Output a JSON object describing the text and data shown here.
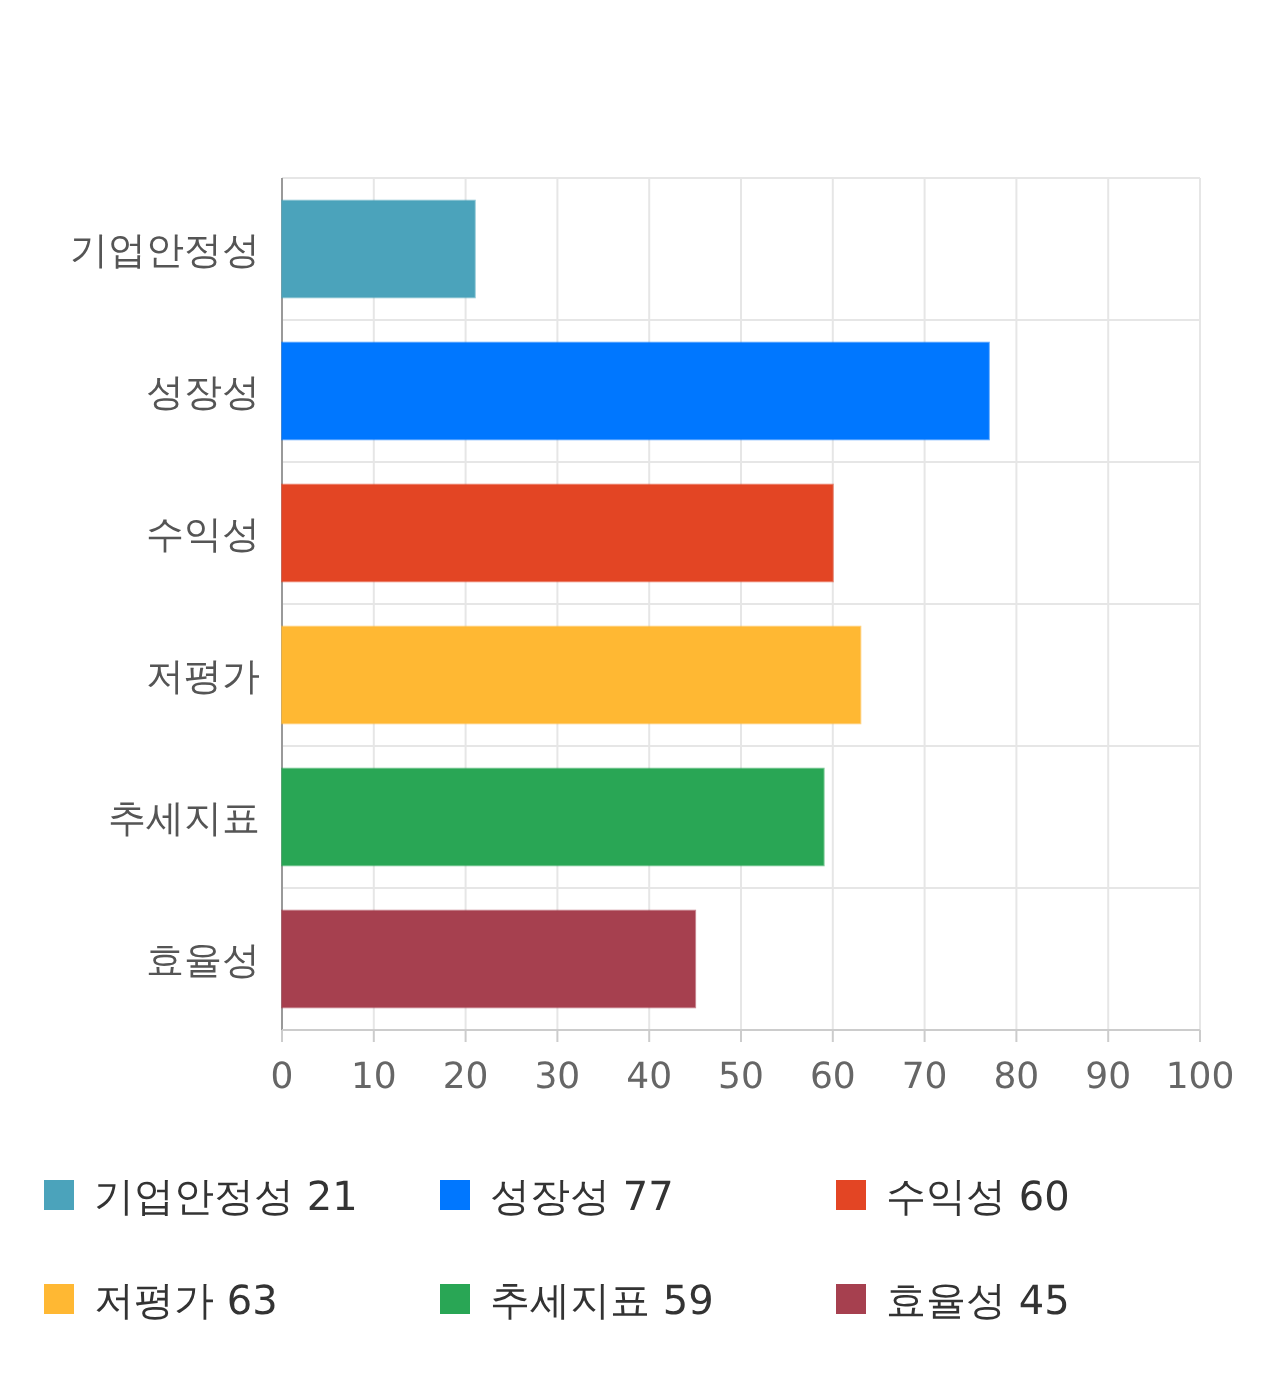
{
  "chart_data": {
    "type": "bar",
    "orientation": "horizontal",
    "stacked": true,
    "categories": [
      "기업안정성",
      "성장성",
      "수익성",
      "저평가",
      "추세지표",
      "효율성"
    ],
    "series": [
      {
        "name": "기업안정성 21",
        "color": "#4ba3bb",
        "values": [
          21,
          null,
          null,
          null,
          null,
          null
        ]
      },
      {
        "name": "성장성 77",
        "color": "#0077ff",
        "values": [
          null,
          77,
          null,
          null,
          null,
          null
        ]
      },
      {
        "name": "수익성 60",
        "color": "#e34524",
        "values": [
          null,
          null,
          60,
          null,
          null,
          null
        ]
      },
      {
        "name": "저평가 63",
        "color": "#ffb833",
        "values": [
          null,
          null,
          null,
          63,
          null,
          null
        ]
      },
      {
        "name": "추세지표 59",
        "color": "#29a655",
        "values": [
          null,
          null,
          null,
          null,
          59,
          null
        ]
      },
      {
        "name": "효율성 45",
        "color": "#a6404f",
        "values": [
          null,
          null,
          null,
          null,
          null,
          45
        ]
      }
    ],
    "xlim": [
      0,
      100
    ],
    "xticks": [
      0,
      10,
      20,
      30,
      40,
      50,
      60,
      70,
      80,
      90,
      100
    ],
    "grid": true,
    "legend": "bottom"
  }
}
